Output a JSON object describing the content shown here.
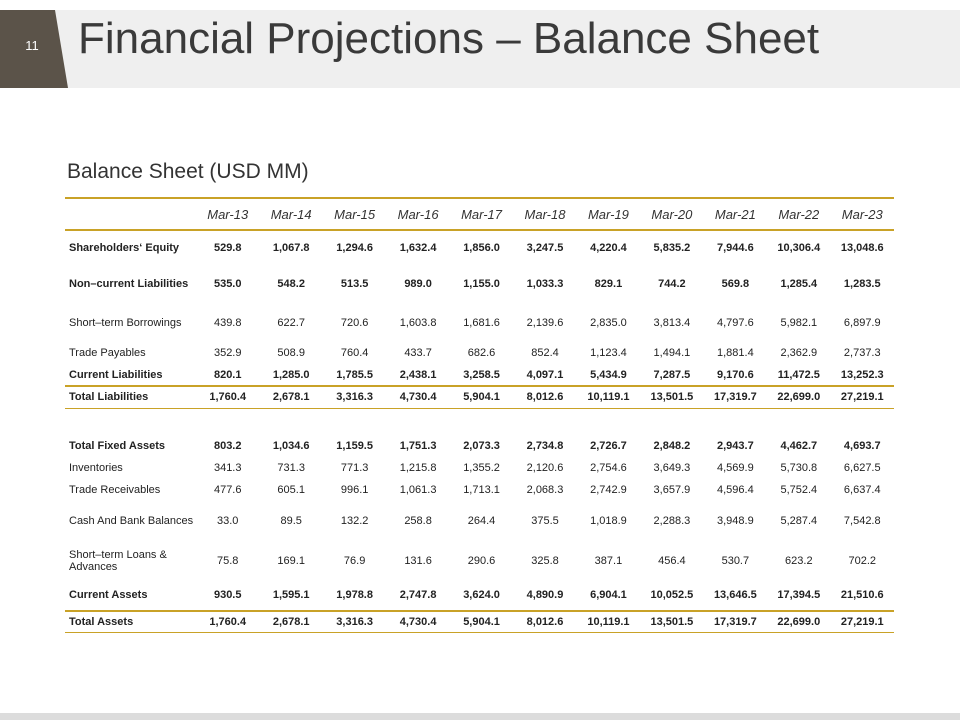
{
  "slide": {
    "number": "11",
    "title": "Financial Projections – Balance Sheet"
  },
  "table_title": "Balance Sheet (USD MM)",
  "accent_color": "#c9a227",
  "columns": [
    "Mar-13",
    "Mar-14",
    "Mar-15",
    "Mar-16",
    "Mar-17",
    "Mar-18",
    "Mar-19",
    "Mar-20",
    "Mar-21",
    "Mar-22",
    "Mar-23"
  ],
  "rows": [
    {
      "label": "Shareholders‘ Equity",
      "values": [
        "529.8",
        "1,067.8",
        "1,294.6",
        "1,632.4",
        "1,856.0",
        "3,247.5",
        "4,220.4",
        "5,835.2",
        "7,944.6",
        "10,306.4",
        "13,048.6"
      ]
    },
    {
      "label": "Non–current Liabilities",
      "values": [
        "535.0",
        "548.2",
        "513.5",
        "989.0",
        "1,155.0",
        "1,033.3",
        "829.1",
        "744.2",
        "569.8",
        "1,285.4",
        "1,283.5"
      ]
    },
    {
      "label": "Short–term Borrowings",
      "values": [
        "439.8",
        "622.7",
        "720.6",
        "1,603.8",
        "1,681.6",
        "2,139.6",
        "2,835.0",
        "3,813.4",
        "4,797.6",
        "5,982.1",
        "6,897.9"
      ]
    },
    {
      "label": "Trade Payables",
      "values": [
        "352.9",
        "508.9",
        "760.4",
        "433.7",
        "682.6",
        "852.4",
        "1,123.4",
        "1,494.1",
        "1,881.4",
        "2,362.9",
        "2,737.3"
      ]
    },
    {
      "label": "Current Liabilities",
      "values": [
        "820.1",
        "1,285.0",
        "1,785.5",
        "2,438.1",
        "3,258.5",
        "4,097.1",
        "5,434.9",
        "7,287.5",
        "9,170.6",
        "11,472.5",
        "13,252.3"
      ]
    },
    {
      "label": "Total Liabilities",
      "values": [
        "1,760.4",
        "2,678.1",
        "3,316.3",
        "4,730.4",
        "5,904.1",
        "8,012.6",
        "10,119.1",
        "13,501.5",
        "17,319.7",
        "22,699.0",
        "27,219.1"
      ]
    },
    {
      "label": "Total Fixed Assets",
      "values": [
        "803.2",
        "1,034.6",
        "1,159.5",
        "1,751.3",
        "2,073.3",
        "2,734.8",
        "2,726.7",
        "2,848.2",
        "2,943.7",
        "4,462.7",
        "4,693.7"
      ]
    },
    {
      "label": "Inventories",
      "values": [
        "341.3",
        "731.3",
        "771.3",
        "1,215.8",
        "1,355.2",
        "2,120.6",
        "2,754.6",
        "3,649.3",
        "4,569.9",
        "5,730.8",
        "6,627.5"
      ]
    },
    {
      "label": "Trade Receivables",
      "values": [
        "477.6",
        "605.1",
        "996.1",
        "1,061.3",
        "1,713.1",
        "2,068.3",
        "2,742.9",
        "3,657.9",
        "4,596.4",
        "5,752.4",
        "6,637.4"
      ]
    },
    {
      "label": "Cash And Bank Balances",
      "values": [
        "33.0",
        "89.5",
        "132.2",
        "258.8",
        "264.4",
        "375.5",
        "1,018.9",
        "2,288.3",
        "3,948.9",
        "5,287.4",
        "7,542.8"
      ]
    },
    {
      "label": "Short–term Loans & Advances",
      "values": [
        "75.8",
        "169.1",
        "76.9",
        "131.6",
        "290.6",
        "325.8",
        "387.1",
        "456.4",
        "530.7",
        "623.2",
        "702.2"
      ]
    },
    {
      "label": "Current Assets",
      "values": [
        "930.5",
        "1,595.1",
        "1,978.8",
        "2,747.8",
        "3,624.0",
        "4,890.9",
        "6,904.1",
        "10,052.5",
        "13,646.5",
        "17,394.5",
        "21,510.6"
      ]
    },
    {
      "label": "Total Assets",
      "values": [
        "1,760.4",
        "2,678.1",
        "3,316.3",
        "4,730.4",
        "5,904.1",
        "8,012.6",
        "10,119.1",
        "13,501.5",
        "17,319.7",
        "22,699.0",
        "27,219.1"
      ]
    }
  ]
}
